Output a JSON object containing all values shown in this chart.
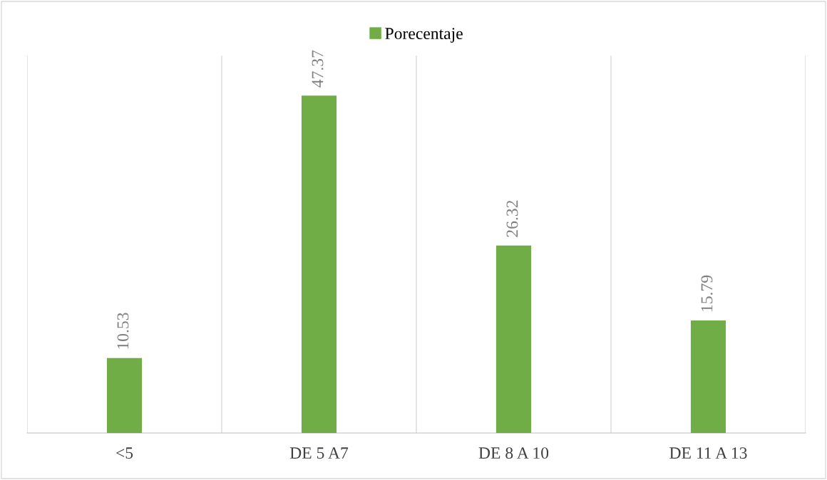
{
  "chart_data": {
    "type": "bar",
    "categories": [
      "<5",
      "DE 5 A7",
      "DE 8 A 10",
      "DE 11 A 13"
    ],
    "series": [
      {
        "name": "Porecentaje",
        "color": "#70ad47",
        "values": [
          10.53,
          47.37,
          26.32,
          15.79
        ]
      }
    ],
    "ylim": [
      0,
      53
    ],
    "data_labels": true,
    "grid": "x",
    "legend": "top"
  }
}
